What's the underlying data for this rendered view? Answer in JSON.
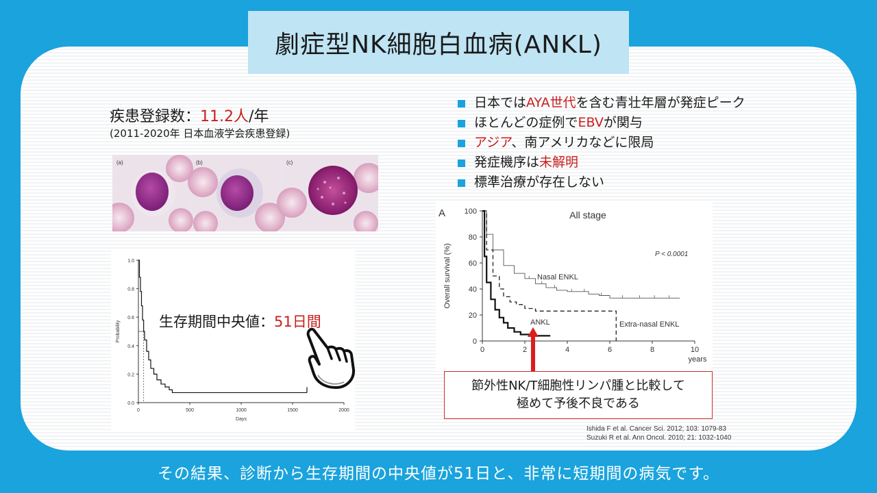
{
  "slide": {
    "title": "劇症型NK細胞白血病(ANKL)",
    "caption": "その結果、診断から生存期間の中央値が51日と、非常に短期間の病気です。",
    "colors": {
      "background": "#1aa3dc",
      "title_box": "#bfe4f4",
      "accent_red": "#c81e1e"
    }
  },
  "registry": {
    "label": "疾患登録数：",
    "value": "11.2人",
    "unit": "/年",
    "source": "(2011-2020年 日本血液学会疾患登録)"
  },
  "micrographs": {
    "labels": [
      "(a)",
      "(b)",
      "(c)"
    ]
  },
  "bullets": [
    {
      "pre": "日本では",
      "red": "AYA世代",
      "post": "を含む青壮年層が発症ピーク"
    },
    {
      "pre": "ほとんどの症例で",
      "red": "EBV",
      "post": "が関与"
    },
    {
      "pre": "",
      "red": "アジア",
      "post": "、南アメリカなどに限局"
    },
    {
      "pre": "発症機序は",
      "red": "未解明",
      "post": ""
    },
    {
      "pre": "標準治療が存在しない",
      "red": "",
      "post": ""
    }
  ],
  "median": {
    "label": "生存期間中央値：",
    "value": "51日間"
  },
  "callout": {
    "line1": "節外性NK/T細胞性リンパ腫と比較して",
    "line2": "極めて予後不良である"
  },
  "references": [
    "Ishida F et al. Cancer Sci. 2012; 103: 1079-83",
    "Suzuki R et al. Ann Oncol. 2010; 21: 1032-1040"
  ],
  "chart_data": [
    {
      "type": "line",
      "xlabel": "Days",
      "ylabel": "Probability",
      "xlim": [
        0,
        2000
      ],
      "ylim": [
        0,
        1.0
      ],
      "xticks": [
        "0",
        "500",
        "1000",
        "1500",
        "2000"
      ],
      "yticks": [
        "0.0",
        "0.2",
        "0.4",
        "0.6",
        "0.8",
        "1.0"
      ],
      "median_days": 51,
      "series": [
        {
          "x": [
            0,
            10,
            20,
            30,
            40,
            51,
            60,
            80,
            100,
            120,
            150,
            180,
            220,
            260,
            300,
            330,
            1640
          ],
          "y": [
            1.0,
            0.88,
            0.78,
            0.68,
            0.58,
            0.5,
            0.44,
            0.36,
            0.3,
            0.24,
            0.2,
            0.16,
            0.13,
            0.11,
            0.09,
            0.07,
            0.07
          ]
        }
      ]
    },
    {
      "type": "line",
      "panel_label": "A",
      "title": "All stage",
      "pvalue": "P < 0.0001",
      "xlabel": "years",
      "ylabel": "Overall survival (%)",
      "xlim": [
        0,
        10
      ],
      "ylim": [
        0,
        100
      ],
      "xticks": [
        "0",
        "2",
        "4",
        "6",
        "8",
        "10"
      ],
      "yticks": [
        "0",
        "20",
        "40",
        "60",
        "80",
        "100"
      ],
      "series": [
        {
          "name": "Nasal ENKL",
          "x": [
            0,
            0.2,
            0.5,
            1,
            1.5,
            2,
            2.5,
            3,
            3.5,
            4,
            5,
            5.5,
            6,
            7,
            8,
            9.3
          ],
          "y": [
            100,
            82,
            70,
            58,
            52,
            48,
            44,
            41,
            39,
            38,
            36,
            35,
            33,
            33,
            33,
            33
          ]
        },
        {
          "name": "Extra-nasal ENKL",
          "x": [
            0,
            0.2,
            0.5,
            0.8,
            1,
            1.3,
            1.6,
            2,
            2.5,
            3,
            5,
            6,
            6.3
          ],
          "y": [
            100,
            70,
            50,
            40,
            34,
            30,
            28,
            25,
            23,
            23,
            23,
            23,
            0
          ]
        },
        {
          "name": "ANKL",
          "x": [
            0,
            0.1,
            0.2,
            0.4,
            0.6,
            0.8,
            1,
            1.2,
            1.5,
            1.8,
            2.2,
            3.2
          ],
          "y": [
            100,
            65,
            45,
            32,
            24,
            18,
            14,
            10,
            7,
            5,
            4,
            4
          ]
        }
      ]
    }
  ]
}
